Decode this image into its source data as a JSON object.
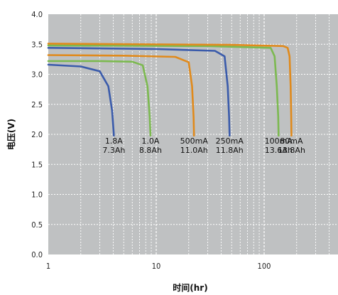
{
  "chart_data": {
    "type": "line",
    "xscale": "log",
    "xlim": [
      1,
      500
    ],
    "ylim": [
      0.0,
      4.0
    ],
    "xticks": [
      1,
      10,
      100
    ],
    "xtick_labels": [
      "1",
      "10",
      "100"
    ],
    "yticks": [
      0.0,
      0.5,
      1.0,
      1.5,
      2.0,
      2.5,
      3.0,
      3.5,
      4.0
    ],
    "ytick_labels": [
      "0.0",
      "0.5",
      "1.0",
      "1.5",
      "2.0",
      "2.5",
      "3.0",
      "3.5",
      "4.0"
    ],
    "xlabel": "时间(hr)",
    "ylabel": "电压(V)",
    "grid": true,
    "background": "#bfc1c2",
    "series": [
      {
        "color": "#3a5bab",
        "label": [
          "1.8A",
          "7.3Ah"
        ],
        "points": [
          [
            1.0,
            3.16
          ],
          [
            2.0,
            3.13
          ],
          [
            3.0,
            3.05
          ],
          [
            3.6,
            2.8
          ],
          [
            3.9,
            2.4
          ],
          [
            4.05,
            2.0
          ],
          [
            4.05,
            1.98
          ]
        ]
      },
      {
        "color": "#7cb950",
        "label": [
          "1.0A",
          "8.8Ah"
        ],
        "points": [
          [
            1.0,
            3.22
          ],
          [
            3.0,
            3.22
          ],
          [
            6.0,
            3.21
          ],
          [
            7.5,
            3.15
          ],
          [
            8.3,
            2.8
          ],
          [
            8.7,
            2.3
          ],
          [
            8.85,
            2.0
          ],
          [
            8.85,
            1.98
          ]
        ]
      },
      {
        "color": "#e08a1c",
        "label": [
          "500mA",
          "11.0Ah"
        ],
        "points": [
          [
            1.0,
            3.32
          ],
          [
            5.0,
            3.31
          ],
          [
            15.0,
            3.29
          ],
          [
            20.0,
            3.2
          ],
          [
            21.5,
            2.8
          ],
          [
            22.2,
            2.3
          ],
          [
            22.4,
            2.0
          ],
          [
            22.4,
            1.98
          ]
        ]
      },
      {
        "color": "#3a5bab",
        "label": [
          "250mA",
          "11.8Ah"
        ],
        "points": [
          [
            1.0,
            3.44
          ],
          [
            10.0,
            3.42
          ],
          [
            35.0,
            3.39
          ],
          [
            43.0,
            3.3
          ],
          [
            46.0,
            2.8
          ],
          [
            47.3,
            2.3
          ],
          [
            47.8,
            2.0
          ],
          [
            47.8,
            1.98
          ]
        ]
      },
      {
        "color": "#7cb950",
        "label": [
          "100mA",
          "13.6Ah"
        ],
        "points": [
          [
            1.0,
            3.48
          ],
          [
            30.0,
            3.47
          ],
          [
            115.0,
            3.44
          ],
          [
            125.0,
            3.3
          ],
          [
            131.0,
            2.8
          ],
          [
            135.0,
            2.3
          ],
          [
            136.0,
            2.0
          ],
          [
            136.0,
            1.98
          ]
        ]
      },
      {
        "color": "#e08a1c",
        "label": [
          "80mA",
          "13.8Ah"
        ],
        "points": [
          [
            1.0,
            3.51
          ],
          [
            50.0,
            3.49
          ],
          [
            150.0,
            3.47
          ],
          [
            165.0,
            3.44
          ],
          [
            172.0,
            3.3
          ],
          [
            176.0,
            2.8
          ],
          [
            178.0,
            2.3
          ],
          [
            179.0,
            2.0
          ],
          [
            179.0,
            1.98
          ]
        ]
      }
    ]
  }
}
